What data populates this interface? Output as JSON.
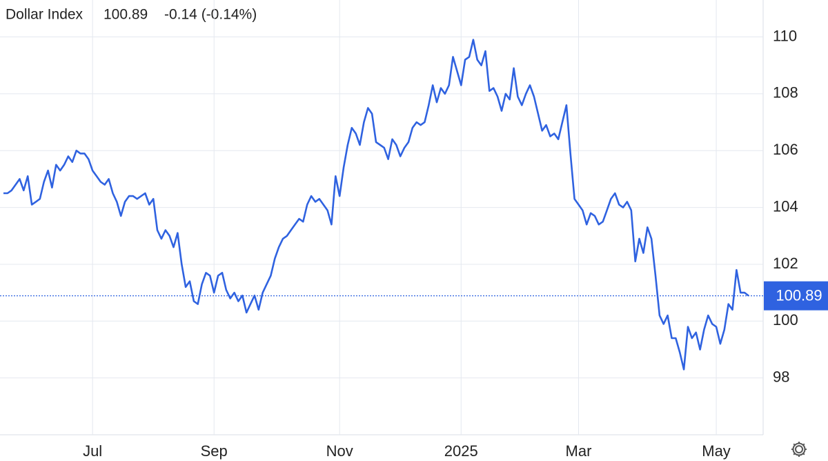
{
  "chart_data": {
    "type": "line",
    "title": "Dollar Index",
    "last_price": 100.89,
    "change_label": "-0.14 (-0.14%)",
    "color": "#2f62e0",
    "change_color": "#e04848",
    "values": [
      104.5,
      104.5,
      104.6,
      104.8,
      105.0,
      104.6,
      105.1,
      104.1,
      104.2,
      104.3,
      104.9,
      105.3,
      104.7,
      105.5,
      105.3,
      105.5,
      105.8,
      105.6,
      106.0,
      105.9,
      105.9,
      105.7,
      105.3,
      105.1,
      104.9,
      104.8,
      105.0,
      104.5,
      104.2,
      103.7,
      104.2,
      104.4,
      104.4,
      104.3,
      104.4,
      104.5,
      104.1,
      104.3,
      103.2,
      102.9,
      103.2,
      103.0,
      102.6,
      103.1,
      102.0,
      101.2,
      101.4,
      100.7,
      100.6,
      101.3,
      101.7,
      101.6,
      101.0,
      101.6,
      101.7,
      101.1,
      100.8,
      101.0,
      100.7,
      100.9,
      100.3,
      100.6,
      100.9,
      100.4,
      101.0,
      101.3,
      101.6,
      102.2,
      102.6,
      102.9,
      103.0,
      103.2,
      103.4,
      103.6,
      103.5,
      104.1,
      104.4,
      104.2,
      104.3,
      104.1,
      103.9,
      103.4,
      105.1,
      104.4,
      105.4,
      106.2,
      106.8,
      106.6,
      106.2,
      107.0,
      107.5,
      107.3,
      106.3,
      106.2,
      106.1,
      105.7,
      106.4,
      106.2,
      105.8,
      106.1,
      106.3,
      106.8,
      107.0,
      106.9,
      107.0,
      107.6,
      108.3,
      107.7,
      108.2,
      108.0,
      108.3,
      109.3,
      108.8,
      108.3,
      109.2,
      109.3,
      109.9,
      109.2,
      109.0,
      109.5,
      108.1,
      108.2,
      107.9,
      107.4,
      108.0,
      107.8,
      108.9,
      107.9,
      107.6,
      108.0,
      108.3,
      107.9,
      107.3,
      106.7,
      106.9,
      106.5,
      106.6,
      106.4,
      107.0,
      107.6,
      105.9,
      104.3,
      104.1,
      103.9,
      103.4,
      103.8,
      103.7,
      103.4,
      103.5,
      103.9,
      104.3,
      104.5,
      104.1,
      104.0,
      104.2,
      103.9,
      102.1,
      102.9,
      102.4,
      103.3,
      102.9,
      101.6,
      100.2,
      99.9,
      100.2,
      99.4,
      99.4,
      98.9,
      98.3,
      99.8,
      99.4,
      99.6,
      99.0,
      99.7,
      100.2,
      99.9,
      99.8,
      99.2,
      99.7,
      100.6,
      100.4,
      101.8,
      101.0,
      101.0,
      100.89
    ],
    "xlim": [
      0,
      184
    ],
    "xticks": [
      {
        "value": 22,
        "label": "Jul"
      },
      {
        "value": 52,
        "label": "Sep"
      },
      {
        "value": 83,
        "label": "Nov"
      },
      {
        "value": 113,
        "label": "2025"
      },
      {
        "value": 142,
        "label": "Mar"
      },
      {
        "value": 176,
        "label": "May"
      }
    ],
    "ylim": [
      96,
      111.3
    ],
    "yticks": [
      98,
      100,
      102,
      104,
      106,
      108,
      110
    ],
    "grid": true
  }
}
